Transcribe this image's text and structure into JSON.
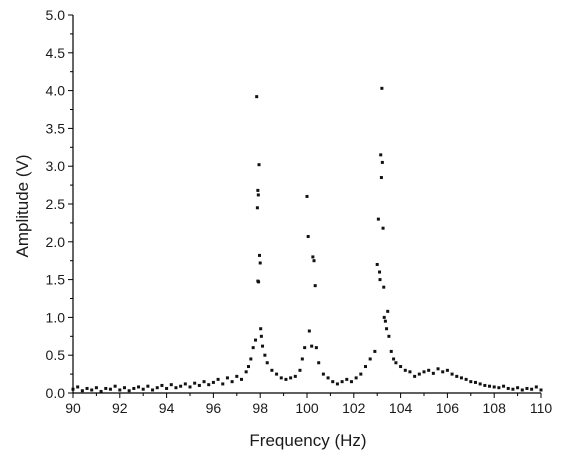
{
  "chart_data": {
    "type": "scatter",
    "title": "",
    "xlabel": "Frequency (Hz)",
    "ylabel": "Amplitude (V)",
    "xlim": [
      90,
      110
    ],
    "ylim": [
      0,
      5
    ],
    "x_ticks": [
      90,
      92,
      94,
      96,
      98,
      100,
      102,
      104,
      106,
      108,
      110
    ],
    "y_ticks": [
      0.0,
      0.5,
      1.0,
      1.5,
      2.0,
      2.5,
      3.0,
      3.5,
      4.0,
      4.5,
      5.0
    ],
    "x_tick_labels": [
      "90",
      "92",
      "94",
      "96",
      "98",
      "100",
      "102",
      "104",
      "106",
      "108",
      "110"
    ],
    "y_tick_labels": [
      "0.0",
      "0.5",
      "1.0",
      "1.5",
      "2.0",
      "2.5",
      "3.0",
      "3.5",
      "4.0",
      "4.5",
      "5.0"
    ],
    "grid": false,
    "marker_color": "#111111",
    "series": [
      {
        "points": [
          [
            90.0,
            0.05
          ],
          [
            90.2,
            0.08
          ],
          [
            90.4,
            0.03
          ],
          [
            90.6,
            0.06
          ],
          [
            90.8,
            0.04
          ],
          [
            91.0,
            0.07
          ],
          [
            91.2,
            0.02
          ],
          [
            91.4,
            0.06
          ],
          [
            91.6,
            0.05
          ],
          [
            91.8,
            0.09
          ],
          [
            92.0,
            0.04
          ],
          [
            92.2,
            0.07
          ],
          [
            92.4,
            0.03
          ],
          [
            92.6,
            0.06
          ],
          [
            92.8,
            0.08
          ],
          [
            93.0,
            0.05
          ],
          [
            93.2,
            0.09
          ],
          [
            93.4,
            0.04
          ],
          [
            93.6,
            0.07
          ],
          [
            93.8,
            0.1
          ],
          [
            94.0,
            0.06
          ],
          [
            94.2,
            0.11
          ],
          [
            94.4,
            0.07
          ],
          [
            94.6,
            0.09
          ],
          [
            94.8,
            0.12
          ],
          [
            95.0,
            0.08
          ],
          [
            95.2,
            0.13
          ],
          [
            95.4,
            0.1
          ],
          [
            95.6,
            0.15
          ],
          [
            95.8,
            0.11
          ],
          [
            96.0,
            0.14
          ],
          [
            96.2,
            0.18
          ],
          [
            96.4,
            0.12
          ],
          [
            96.6,
            0.2
          ],
          [
            96.8,
            0.15
          ],
          [
            97.0,
            0.22
          ],
          [
            97.2,
            0.18
          ],
          [
            97.4,
            0.28
          ],
          [
            97.5,
            0.35
          ],
          [
            97.6,
            0.45
          ],
          [
            97.7,
            0.6
          ],
          [
            97.8,
            0.7
          ],
          [
            97.85,
            3.92
          ],
          [
            97.9,
            2.68
          ],
          [
            97.92,
            2.62
          ],
          [
            97.88,
            2.45
          ],
          [
            97.95,
            3.02
          ],
          [
            97.97,
            1.82
          ],
          [
            98.0,
            1.72
          ],
          [
            97.9,
            1.48
          ],
          [
            97.93,
            1.47
          ],
          [
            98.02,
            0.85
          ],
          [
            98.05,
            0.75
          ],
          [
            98.1,
            0.62
          ],
          [
            98.2,
            0.5
          ],
          [
            98.3,
            0.4
          ],
          [
            98.5,
            0.3
          ],
          [
            98.7,
            0.25
          ],
          [
            98.9,
            0.2
          ],
          [
            99.1,
            0.18
          ],
          [
            99.3,
            0.2
          ],
          [
            99.5,
            0.22
          ],
          [
            99.7,
            0.3
          ],
          [
            99.8,
            0.45
          ],
          [
            99.9,
            0.6
          ],
          [
            100.0,
            2.6
          ],
          [
            100.05,
            2.07
          ],
          [
            100.1,
            0.82
          ],
          [
            100.2,
            0.62
          ],
          [
            100.25,
            1.8
          ],
          [
            100.3,
            1.75
          ],
          [
            100.35,
            1.42
          ],
          [
            100.4,
            0.6
          ],
          [
            100.5,
            0.4
          ],
          [
            100.7,
            0.25
          ],
          [
            100.9,
            0.2
          ],
          [
            101.1,
            0.15
          ],
          [
            101.3,
            0.12
          ],
          [
            101.5,
            0.15
          ],
          [
            101.7,
            0.18
          ],
          [
            101.9,
            0.15
          ],
          [
            102.1,
            0.2
          ],
          [
            102.3,
            0.25
          ],
          [
            102.5,
            0.35
          ],
          [
            102.7,
            0.45
          ],
          [
            102.9,
            0.55
          ],
          [
            103.0,
            1.7
          ],
          [
            103.05,
            2.3
          ],
          [
            103.1,
            1.6
          ],
          [
            103.12,
            1.5
          ],
          [
            103.15,
            3.15
          ],
          [
            103.18,
            2.85
          ],
          [
            103.2,
            4.03
          ],
          [
            103.22,
            3.05
          ],
          [
            103.25,
            2.18
          ],
          [
            103.28,
            1.4
          ],
          [
            103.3,
            1.0
          ],
          [
            103.35,
            0.95
          ],
          [
            103.4,
            0.85
          ],
          [
            103.45,
            1.08
          ],
          [
            103.5,
            0.75
          ],
          [
            103.6,
            0.55
          ],
          [
            103.7,
            0.45
          ],
          [
            103.8,
            0.4
          ],
          [
            104.0,
            0.35
          ],
          [
            104.2,
            0.3
          ],
          [
            104.4,
            0.28
          ],
          [
            104.6,
            0.22
          ],
          [
            104.8,
            0.25
          ],
          [
            105.0,
            0.28
          ],
          [
            105.2,
            0.3
          ],
          [
            105.4,
            0.26
          ],
          [
            105.6,
            0.32
          ],
          [
            105.8,
            0.28
          ],
          [
            106.0,
            0.3
          ],
          [
            106.2,
            0.25
          ],
          [
            106.4,
            0.22
          ],
          [
            106.6,
            0.2
          ],
          [
            106.8,
            0.18
          ],
          [
            107.0,
            0.15
          ],
          [
            107.2,
            0.14
          ],
          [
            107.4,
            0.12
          ],
          [
            107.6,
            0.1
          ],
          [
            107.8,
            0.09
          ],
          [
            108.0,
            0.08
          ],
          [
            108.2,
            0.07
          ],
          [
            108.4,
            0.09
          ],
          [
            108.6,
            0.06
          ],
          [
            108.8,
            0.05
          ],
          [
            109.0,
            0.07
          ],
          [
            109.2,
            0.04
          ],
          [
            109.4,
            0.06
          ],
          [
            109.6,
            0.05
          ],
          [
            109.8,
            0.08
          ],
          [
            110.0,
            0.04
          ]
        ]
      }
    ]
  }
}
